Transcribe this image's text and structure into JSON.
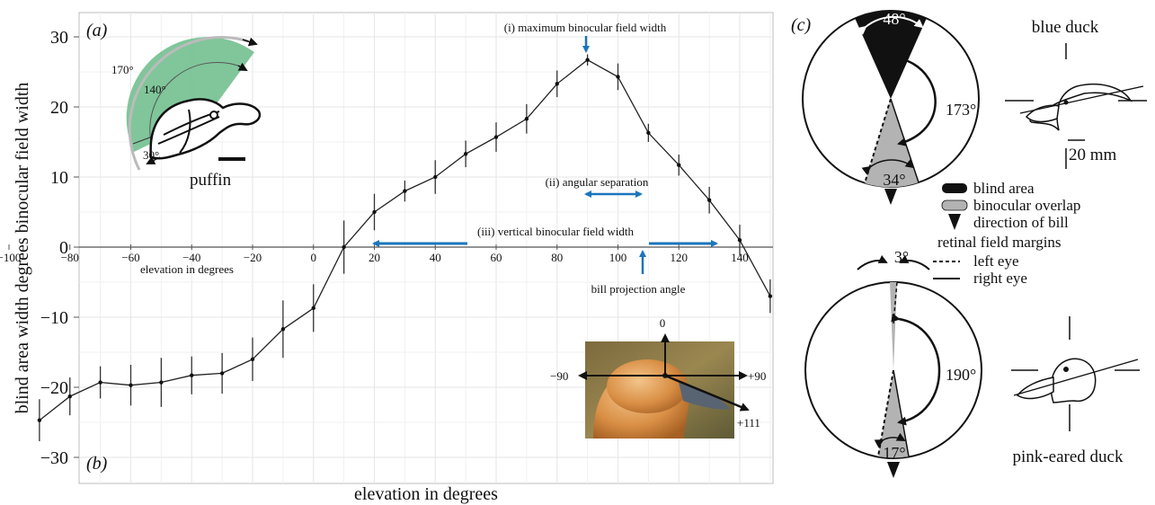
{
  "chart_data": [
    {
      "panel": "a-b",
      "type": "line",
      "xlabel": "elevation in degrees",
      "ylabel": "blind area width degrees binocular field width",
      "inner_xlabel": "elevation in degrees",
      "xlim": [
        -100,
        160
      ],
      "ylim": [
        -33,
        32
      ],
      "x_ticks": [
        -100,
        -80,
        -60,
        -40,
        -20,
        0,
        20,
        40,
        60,
        80,
        100,
        120,
        140
      ],
      "y_ticks": [
        -30,
        -20,
        -10,
        0,
        10,
        20,
        30
      ],
      "grid": true,
      "points": [
        {
          "x": -90,
          "y": -24.7,
          "err": 3.0
        },
        {
          "x": -80,
          "y": -21.3,
          "err": 2.7
        },
        {
          "x": -70,
          "y": -19.3,
          "err": 2.3
        },
        {
          "x": -60,
          "y": -19.7,
          "err": 2.9
        },
        {
          "x": -50,
          "y": -19.3,
          "err": 3.5
        },
        {
          "x": -40,
          "y": -18.3,
          "err": 2.7
        },
        {
          "x": -30,
          "y": -18.0,
          "err": 2.9
        },
        {
          "x": -20,
          "y": -16.0,
          "err": 3.1
        },
        {
          "x": -10,
          "y": -11.7,
          "err": 4.1
        },
        {
          "x": 0,
          "y": -8.7,
          "err": 3.4
        },
        {
          "x": 10,
          "y": 0.0,
          "err": 3.8
        },
        {
          "x": 20,
          "y": 5.0,
          "err": 2.6
        },
        {
          "x": 30,
          "y": 8.0,
          "err": 1.5
        },
        {
          "x": 40,
          "y": 10.0,
          "err": 2.4
        },
        {
          "x": 50,
          "y": 13.3,
          "err": 1.9
        },
        {
          "x": 60,
          "y": 15.7,
          "err": 2.1
        },
        {
          "x": 70,
          "y": 18.3,
          "err": 2.1
        },
        {
          "x": 80,
          "y": 23.3,
          "err": 1.9
        },
        {
          "x": 90,
          "y": 26.7,
          "err": 0.8
        },
        {
          "x": 100,
          "y": 24.3,
          "err": 1.9
        },
        {
          "x": 110,
          "y": 16.3,
          "err": 1.3
        },
        {
          "x": 120,
          "y": 11.7,
          "err": 1.5
        },
        {
          "x": 130,
          "y": 6.7,
          "err": 1.9
        },
        {
          "x": 140,
          "y": 1.0,
          "err": 2.2
        },
        {
          "x": 150,
          "y": -7.0,
          "err": 2.4
        }
      ],
      "annotations": {
        "max_width": "(i) maximum binocular field width",
        "angular_sep": "(ii) angular separation",
        "vertical_width": "(iii) vertical binocular field width",
        "bill_projection": "bill projection angle"
      },
      "panel_letters": {
        "a": "(a)",
        "b": "(b)"
      },
      "accent_color": "#1b75bc"
    }
  ],
  "puffin_inset": {
    "label": "puffin",
    "angles": {
      "outer": "170°",
      "inner": "140°",
      "low": "30°"
    },
    "fill_color": "#72c08f"
  },
  "photo_inset": {
    "angles": {
      "top": "0",
      "left": "−90",
      "right": "+90",
      "bill": "+111"
    }
  },
  "panel_c": {
    "letter": "(c)",
    "blue_duck": {
      "title": "blue duck",
      "angles": {
        "blind": "48°",
        "arc": "173°",
        "overlap": "34°"
      },
      "scale": "20 mm"
    },
    "pink_eared_duck": {
      "title": "pink-eared duck",
      "angles": {
        "blind": "3°",
        "arc": "190°",
        "overlap": "17°"
      }
    },
    "legend": {
      "blind_area": "blind area",
      "binocular_overlap": "binocular overlap",
      "direction_of_bill": "direction of bill",
      "retinal_margins": "retinal field margins",
      "left_eye": "left eye",
      "right_eye": "right eye"
    },
    "colors": {
      "blind": "#111111",
      "overlap": "#b3b3b3"
    }
  }
}
